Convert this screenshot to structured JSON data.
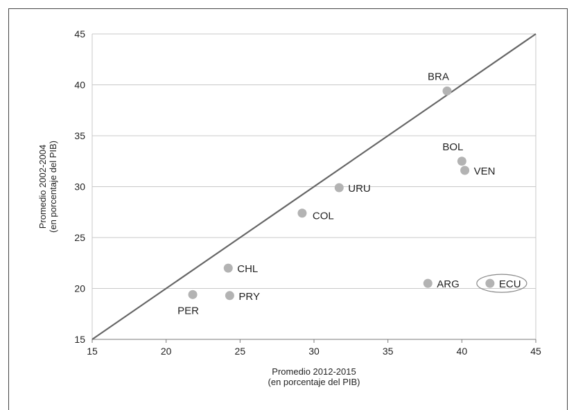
{
  "chart_data": {
    "type": "scatter",
    "title": "",
    "xlabel": [
      "Promedio 2012-2015",
      "(en porcentaje del PIB)"
    ],
    "ylabel": [
      "Promedio 2002-2004",
      "(en porcentaje del PIB)"
    ],
    "xlim": [
      15,
      45
    ],
    "ylim": [
      15,
      45
    ],
    "xticks": [
      15,
      20,
      25,
      30,
      35,
      40,
      45
    ],
    "yticks": [
      15,
      20,
      25,
      30,
      35,
      40,
      45
    ],
    "grid": "horizontal",
    "reference_line": {
      "from": [
        15,
        15
      ],
      "to": [
        45,
        45
      ]
    },
    "colors": {
      "points": "#b3b3b3",
      "line": "#666666",
      "grid": "#c8c8c8",
      "highlight": "#888888"
    },
    "points": [
      {
        "label": "BRA",
        "x": 39.0,
        "y": 39.4,
        "label_pos": "above-left"
      },
      {
        "label": "BOL",
        "x": 40.0,
        "y": 32.5,
        "label_pos": "above-left"
      },
      {
        "label": "VEN",
        "x": 40.2,
        "y": 31.6,
        "label_pos": "right"
      },
      {
        "label": "URU",
        "x": 31.7,
        "y": 29.9,
        "label_pos": "right"
      },
      {
        "label": "COL",
        "x": 29.2,
        "y": 27.4,
        "label_pos": "right-below"
      },
      {
        "label": "CHL",
        "x": 24.2,
        "y": 22.0,
        "label_pos": "right"
      },
      {
        "label": "PER",
        "x": 21.8,
        "y": 19.4,
        "label_pos": "below"
      },
      {
        "label": "PRY",
        "x": 24.3,
        "y": 19.3,
        "label_pos": "right"
      },
      {
        "label": "ARG",
        "x": 37.7,
        "y": 20.5,
        "label_pos": "right"
      },
      {
        "label": "ECU",
        "x": 41.9,
        "y": 20.5,
        "label_pos": "right",
        "highlighted": true
      }
    ]
  }
}
